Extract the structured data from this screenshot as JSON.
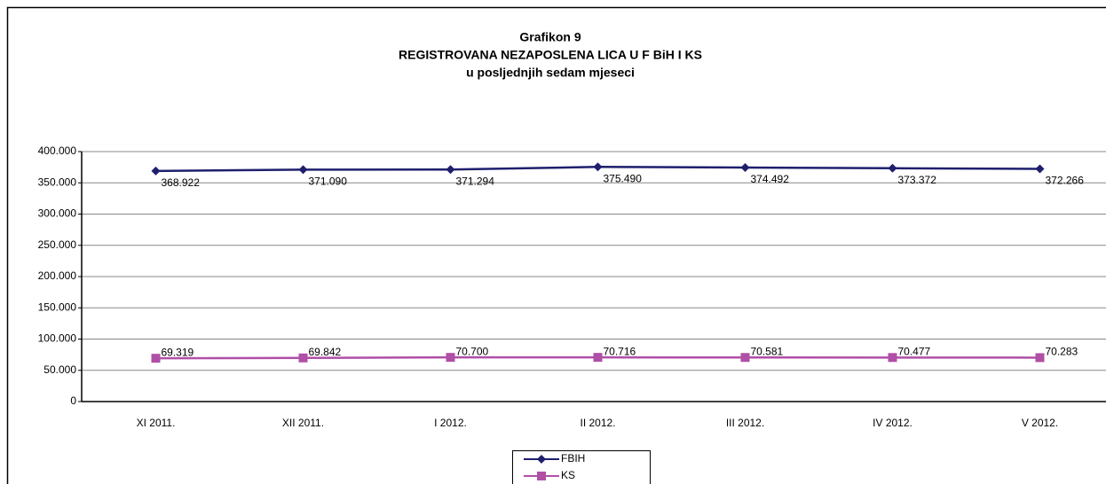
{
  "chart_data": {
    "type": "line",
    "title_lines": [
      "Grafikon 9",
      "REGISTROVANA NEZAPOSLENA LICA U F BiH I KS",
      "u posljednjih sedam mjeseci"
    ],
    "categories": [
      "XI 2011.",
      "XII 2011.",
      "I 2012.",
      "II 2012.",
      "III 2012.",
      "IV 2012.",
      "V 2012."
    ],
    "series": [
      {
        "name": "FBIH",
        "color": "#1f1f6e",
        "marker": "diamond",
        "values": [
          368922,
          371090,
          371294,
          375490,
          374492,
          373372,
          372266
        ],
        "value_labels": [
          "368.922",
          "371.090",
          "371.294",
          "375.490",
          "374.492",
          "373.372",
          "372.266"
        ]
      },
      {
        "name": "KS",
        "color": "#b04fa6",
        "marker": "square",
        "values": [
          69319,
          69842,
          70700,
          70716,
          70581,
          70477,
          70283
        ],
        "value_labels": [
          "69.319",
          "69.842",
          "70.700",
          "70.716",
          "70.581",
          "70.477",
          "70.283"
        ]
      }
    ],
    "ylim": [
      0,
      400000
    ],
    "yticks": [
      0,
      {
        "value": 50000,
        "label": "50.000"
      },
      {
        "value": 100000,
        "label": "100.000"
      },
      {
        "value": 150000,
        "label": "150.000"
      },
      {
        "value": 200000,
        "label": "200.000"
      },
      {
        "value": 250000,
        "label": "250.000"
      },
      {
        "value": 300000,
        "label": "300.000"
      },
      {
        "value": 350000,
        "label": "350.000"
      },
      {
        "value": 400000,
        "label": "400.000"
      }
    ],
    "grid": true,
    "legend": "bottom"
  }
}
